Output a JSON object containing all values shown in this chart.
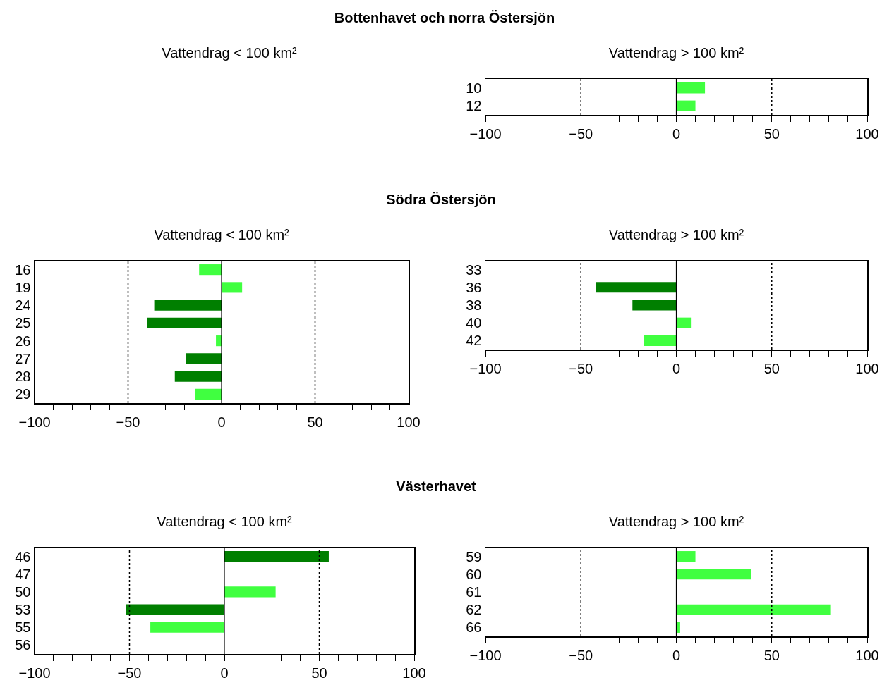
{
  "chart_data": [
    {
      "type": "other",
      "title": "Bottenhavet och norra Östersjön"
    },
    {
      "type": "other",
      "title": "Vattendrag < 100 km²"
    },
    {
      "type": "bar",
      "orientation": "horizontal",
      "title": "Vattendrag > 100 km²",
      "categories": [
        "10",
        "12"
      ],
      "values": [
        15,
        10
      ],
      "colors": [
        "#40ff40",
        "#40ff40"
      ],
      "xlim": [
        -100,
        100
      ],
      "xticks": [
        {
          "value": -100,
          "label": "−100"
        },
        {
          "value": -90,
          "label": null
        },
        {
          "value": -80,
          "label": null
        },
        {
          "value": -70,
          "label": null
        },
        {
          "value": -60,
          "label": null
        },
        {
          "value": -50,
          "label": "−50"
        },
        {
          "value": -40,
          "label": null
        },
        {
          "value": -30,
          "label": null
        },
        {
          "value": -20,
          "label": null
        },
        {
          "value": -10,
          "label": null
        },
        0,
        {
          "value": 10,
          "label": null
        },
        {
          "value": 20,
          "label": null
        },
        {
          "value": 30,
          "label": null
        },
        {
          "value": 40,
          "label": null
        },
        50,
        {
          "value": 60,
          "label": null
        },
        {
          "value": 70,
          "label": null
        },
        {
          "value": 80,
          "label": null
        },
        {
          "value": 90,
          "label": null
        },
        100
      ],
      "ref_lines": [
        {
          "axis": "x",
          "value": -50,
          "line_style": "dotted"
        },
        {
          "axis": "x",
          "value": 50,
          "line_style": "dotted"
        },
        {
          "axis": "x",
          "value": 0,
          "line_style": "solid"
        }
      ]
    },
    {
      "type": "other",
      "title": "Södra Östersjön"
    },
    {
      "type": "bar",
      "orientation": "horizontal",
      "title": "Vattendrag < 100 km²",
      "categories": [
        "16",
        "19",
        "24",
        "25",
        "26",
        "27",
        "28",
        "29"
      ],
      "values": [
        -12,
        11,
        -36,
        -40,
        -3,
        -19,
        -25,
        -14
      ],
      "colors": [
        "#40ff40",
        "#40ff40",
        "#007f00",
        "#007f00",
        "#40ff40",
        "#007f00",
        "#007f00",
        "#40ff40"
      ],
      "xlim": [
        -100,
        100
      ],
      "xticks": [
        {
          "value": -100,
          "label": "−100"
        },
        {
          "value": -90,
          "label": null
        },
        {
          "value": -80,
          "label": null
        },
        {
          "value": -70,
          "label": null
        },
        {
          "value": -60,
          "label": null
        },
        {
          "value": -50,
          "label": "−50"
        },
        {
          "value": -40,
          "label": null
        },
        {
          "value": -30,
          "label": null
        },
        {
          "value": -20,
          "label": null
        },
        {
          "value": -10,
          "label": null
        },
        0,
        {
          "value": 10,
          "label": null
        },
        {
          "value": 20,
          "label": null
        },
        {
          "value": 30,
          "label": null
        },
        {
          "value": 40,
          "label": null
        },
        50,
        {
          "value": 60,
          "label": null
        },
        {
          "value": 70,
          "label": null
        },
        {
          "value": 80,
          "label": null
        },
        {
          "value": 90,
          "label": null
        },
        100
      ],
      "ref_lines": [
        {
          "axis": "x",
          "value": -50,
          "line_style": "dotted"
        },
        {
          "axis": "x",
          "value": 50,
          "line_style": "dotted"
        },
        {
          "axis": "x",
          "value": 0,
          "line_style": "solid"
        }
      ]
    },
    {
      "type": "bar",
      "orientation": "horizontal",
      "title": "Vattendrag > 100 km²",
      "categories": [
        "33",
        "36",
        "38",
        "40",
        "42"
      ],
      "values": [
        null,
        -42,
        -23,
        8,
        -17
      ],
      "colors": [
        null,
        "#007f00",
        "#007f00",
        "#40ff40",
        "#40ff40"
      ],
      "xlim": [
        -100,
        100
      ],
      "xticks": [
        {
          "value": -100,
          "label": "−100"
        },
        {
          "value": -90,
          "label": null
        },
        {
          "value": -80,
          "label": null
        },
        {
          "value": -70,
          "label": null
        },
        {
          "value": -60,
          "label": null
        },
        {
          "value": -50,
          "label": "−50"
        },
        {
          "value": -40,
          "label": null
        },
        {
          "value": -30,
          "label": null
        },
        {
          "value": -20,
          "label": null
        },
        {
          "value": -10,
          "label": null
        },
        0,
        {
          "value": 10,
          "label": null
        },
        {
          "value": 20,
          "label": null
        },
        {
          "value": 30,
          "label": null
        },
        {
          "value": 40,
          "label": null
        },
        50,
        {
          "value": 60,
          "label": null
        },
        {
          "value": 70,
          "label": null
        },
        {
          "value": 80,
          "label": null
        },
        {
          "value": 90,
          "label": null
        },
        100
      ],
      "ref_lines": [
        {
          "axis": "x",
          "value": -50,
          "line_style": "dotted"
        },
        {
          "axis": "x",
          "value": 50,
          "line_style": "dotted"
        },
        {
          "axis": "x",
          "value": 0,
          "line_style": "solid"
        }
      ]
    },
    {
      "type": "other",
      "title": "Västerhavet"
    },
    {
      "type": "bar",
      "orientation": "horizontal",
      "title": "Vattendrag < 100 km²",
      "categories": [
        "46",
        "47",
        "50",
        "53",
        "55",
        "56"
      ],
      "values": [
        55,
        null,
        27,
        -52,
        -39,
        null
      ],
      "colors": [
        "#007f00",
        null,
        "#40ff40",
        "#007f00",
        "#40ff40",
        null
      ],
      "xlim": [
        -100,
        100
      ],
      "xticks": [
        {
          "value": -100,
          "label": "−100"
        },
        {
          "value": -90,
          "label": null
        },
        {
          "value": -80,
          "label": null
        },
        {
          "value": -70,
          "label": null
        },
        {
          "value": -60,
          "label": null
        },
        {
          "value": -50,
          "label": "−50"
        },
        {
          "value": -40,
          "label": null
        },
        {
          "value": -30,
          "label": null
        },
        {
          "value": -20,
          "label": null
        },
        {
          "value": -10,
          "label": null
        },
        0,
        {
          "value": 10,
          "label": null
        },
        {
          "value": 20,
          "label": null
        },
        {
          "value": 30,
          "label": null
        },
        {
          "value": 40,
          "label": null
        },
        50,
        {
          "value": 60,
          "label": null
        },
        {
          "value": 70,
          "label": null
        },
        {
          "value": 80,
          "label": null
        },
        {
          "value": 90,
          "label": null
        },
        100
      ],
      "ref_lines": [
        {
          "axis": "x",
          "value": -50,
          "line_style": "dotted"
        },
        {
          "axis": "x",
          "value": 50,
          "line_style": "dotted"
        },
        {
          "axis": "x",
          "value": 0,
          "line_style": "solid"
        }
      ]
    },
    {
      "type": "bar",
      "orientation": "horizontal",
      "title": "Vattendrag > 100 km²",
      "categories": [
        "59",
        "60",
        "61",
        "62",
        "66"
      ],
      "values": [
        10,
        39,
        null,
        81,
        2
      ],
      "colors": [
        "#40ff40",
        "#40ff40",
        null,
        "#40ff40",
        "#40ff40"
      ],
      "xlim": [
        -100,
        100
      ],
      "xticks": [
        {
          "value": -100,
          "label": "−100"
        },
        {
          "value": -90,
          "label": null
        },
        {
          "value": -80,
          "label": null
        },
        {
          "value": -70,
          "label": null
        },
        {
          "value": -60,
          "label": null
        },
        {
          "value": -50,
          "label": "−50"
        },
        {
          "value": -40,
          "label": null
        },
        {
          "value": -30,
          "label": null
        },
        {
          "value": -20,
          "label": null
        },
        {
          "value": -10,
          "label": null
        },
        0,
        {
          "value": 10,
          "label": null
        },
        {
          "value": 20,
          "label": null
        },
        {
          "value": 30,
          "label": null
        },
        {
          "value": 40,
          "label": null
        },
        50,
        {
          "value": 60,
          "label": null
        },
        {
          "value": 70,
          "label": null
        },
        {
          "value": 80,
          "label": null
        },
        {
          "value": 90,
          "label": null
        },
        100
      ],
      "ref_lines": [
        {
          "axis": "x",
          "value": -50,
          "line_style": "dotted"
        },
        {
          "axis": "x",
          "value": 50,
          "line_style": "dotted"
        },
        {
          "axis": "x",
          "value": 0,
          "line_style": "solid"
        }
      ]
    }
  ]
}
